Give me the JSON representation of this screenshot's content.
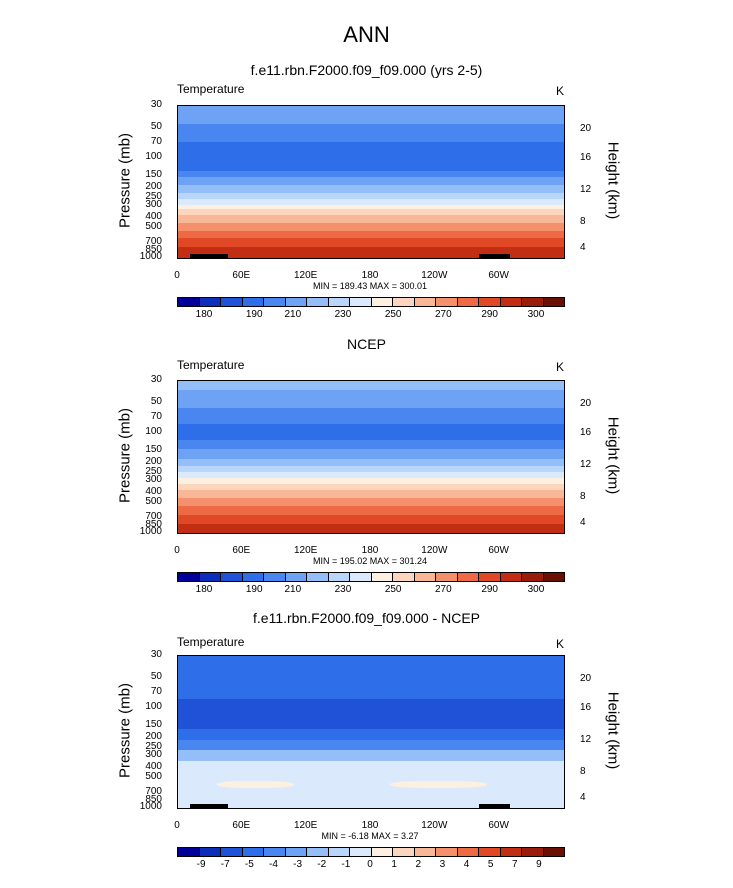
{
  "main_title": "ANN",
  "palettes": {
    "temp": [
      "#000099",
      "#0b2fb8",
      "#1f52d6",
      "#2e6ee8",
      "#4a86ef",
      "#6ea2f4",
      "#93bef7",
      "#b7d6fa",
      "#daeafc",
      "#fdf0e0",
      "#fbd6bd",
      "#f8b796",
      "#f4906c",
      "#ed6a45",
      "#e04826",
      "#c22e14",
      "#9a1c0a",
      "#6a0f04"
    ],
    "diff": [
      "#000099",
      "#0b2fb8",
      "#1f52d6",
      "#2e6ee8",
      "#4a86ef",
      "#6ea2f4",
      "#93bef7",
      "#b7d6fa",
      "#daeafc",
      "#fdf0e0",
      "#fbd6bd",
      "#f8b796",
      "#f4906c",
      "#ed6a45",
      "#e04826",
      "#c22e14",
      "#9a1c0a",
      "#6a0f04"
    ]
  },
  "panels": [
    {
      "title": "f.e11.rbn.F2000.f09_f09.000 (yrs 2-5)",
      "variable_label": "Temperature",
      "units": "K",
      "ylabel": "Pressure (mb)",
      "ylabel_right": "Height (km)",
      "minmax": "MIN = 189.43  MAX = 300.01",
      "colorbar_labels": [
        "180",
        "190",
        "210",
        "230",
        "250",
        "270",
        "290",
        "300"
      ]
    },
    {
      "title": "NCEP",
      "variable_label": "Temperature",
      "units": "K",
      "ylabel": "Pressure (mb)",
      "ylabel_right": "Height (km)",
      "minmax": "MIN = 195.02  MAX = 301.24",
      "colorbar_labels": [
        "180",
        "190",
        "210",
        "230",
        "250",
        "270",
        "290",
        "300"
      ]
    },
    {
      "title": "f.e11.rbn.F2000.f09_f09.000 - NCEP",
      "variable_label": "Temperature",
      "units": "K",
      "ylabel": "Pressure (mb)",
      "ylabel_right": "Height (km)",
      "minmax": "MIN = -6.18  MAX =  3.27",
      "colorbar_labels": [
        "-9",
        "-7",
        "-5",
        "-4",
        "-3",
        "-2",
        "-1",
        "0",
        "1",
        "2",
        "3",
        "4",
        "5",
        "7",
        "9"
      ]
    }
  ],
  "chart_data": [
    {
      "type": "heatmap",
      "title": "f.e11.rbn.F2000.f09_f09.000 (yrs 2-5)",
      "ylabel": "Pressure (mb)",
      "y_tick_labels": [
        "30",
        "50",
        "70",
        "100",
        "150",
        "200",
        "250",
        "300",
        "400",
        "500",
        "700",
        "850",
        "1000"
      ],
      "y_right_tick_labels": [
        "20",
        "16",
        "12",
        "8",
        "4"
      ],
      "x_tick_labels": [
        "0",
        "60E",
        "120E",
        "180",
        "120W",
        "60W"
      ],
      "levels": [
        180,
        185,
        190,
        200,
        210,
        220,
        230,
        240,
        250,
        260,
        270,
        280,
        290,
        295,
        300
      ],
      "min": 189.43,
      "max": 300.01
    },
    {
      "type": "heatmap",
      "title": "NCEP",
      "ylabel": "Pressure (mb)",
      "y_tick_labels": [
        "30",
        "50",
        "70",
        "100",
        "150",
        "200",
        "250",
        "300",
        "400",
        "500",
        "700",
        "850",
        "1000"
      ],
      "y_right_tick_labels": [
        "20",
        "16",
        "12",
        "8",
        "4"
      ],
      "x_tick_labels": [
        "0",
        "60E",
        "120E",
        "180",
        "120W",
        "60W"
      ],
      "min": 195.02,
      "max": 301.24
    },
    {
      "type": "heatmap",
      "title": "f.e11.rbn.F2000.f09_f09.000 - NCEP",
      "ylabel": "Pressure (mb)",
      "y_tick_labels": [
        "30",
        "50",
        "70",
        "100",
        "150",
        "200",
        "250",
        "300",
        "400",
        "500",
        "700",
        "850",
        "1000"
      ],
      "y_right_tick_labels": [
        "20",
        "16",
        "12",
        "8",
        "4"
      ],
      "x_tick_labels": [
        "0",
        "60E",
        "120E",
        "180",
        "120W",
        "60W"
      ],
      "levels": [
        -9,
        -7,
        -5,
        -4,
        -3,
        -2,
        -1,
        0,
        1,
        2,
        3,
        4,
        5,
        7,
        9
      ],
      "min": -6.18,
      "max": 3.27
    }
  ]
}
